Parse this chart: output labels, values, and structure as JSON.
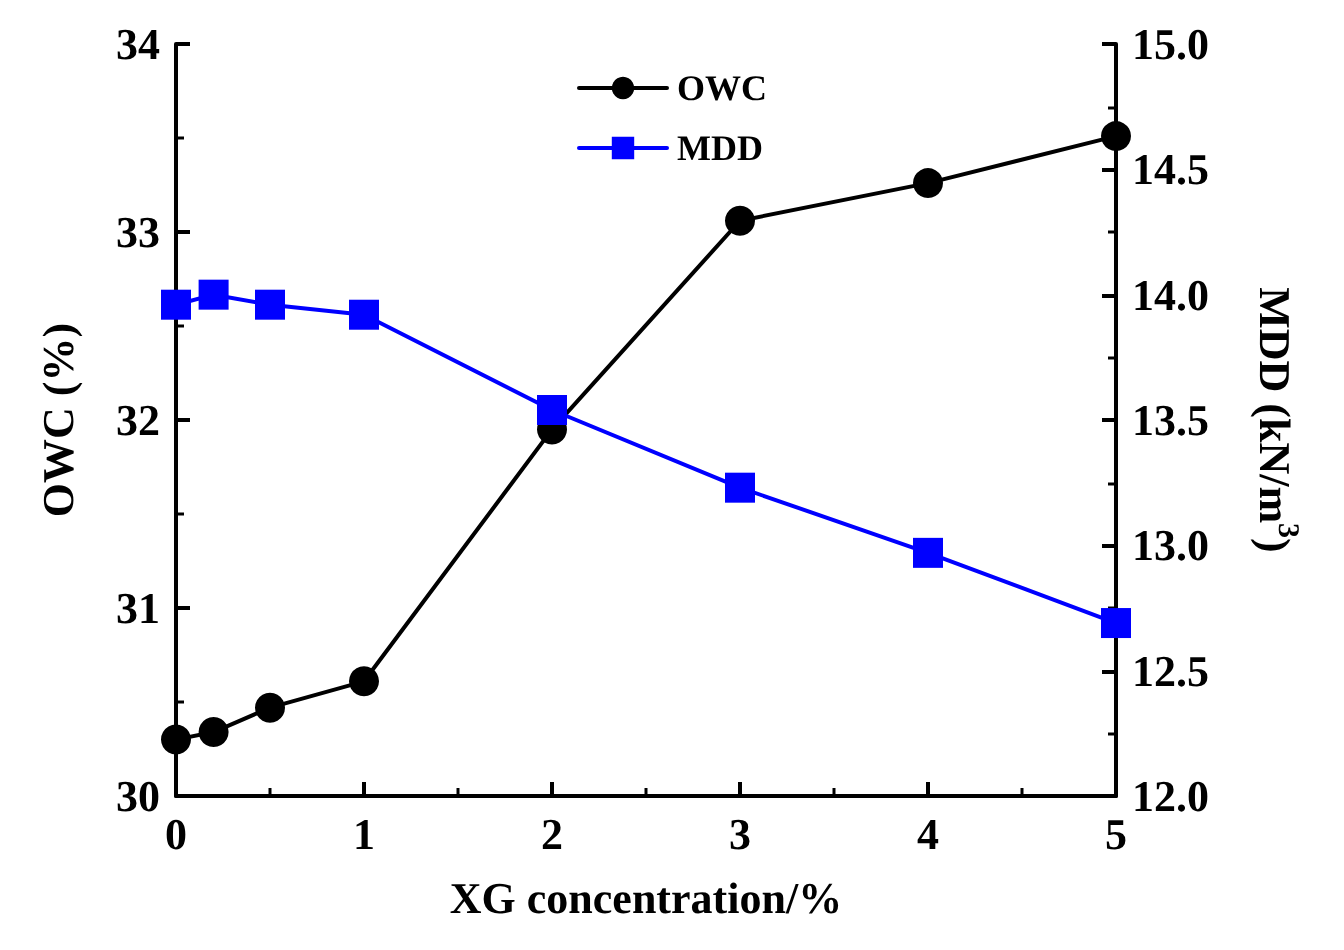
{
  "chart_data": {
    "type": "line",
    "xlabel": "XG concentration/%",
    "ylabel": "OWC (%)",
    "y2label": "MDD (kN/m$^{3}$)",
    "x": [
      0,
      0.2,
      0.5,
      1,
      2,
      3,
      4,
      5
    ],
    "series": [
      {
        "name": "OWC",
        "color": "#000000",
        "marker": "circle",
        "values": [
          30.3,
          30.34,
          30.47,
          30.61,
          31.95,
          33.06,
          33.26,
          33.51
        ]
      },
      {
        "name": "MDD",
        "color": "#0000ff",
        "marker": "square",
        "axis": "y2",
        "values": [
          13.96,
          14.0,
          13.96,
          13.92,
          13.54,
          13.23,
          12.97,
          12.69
        ]
      }
    ],
    "xlim": [
      0,
      5
    ],
    "xticks": [
      0,
      1,
      2,
      3,
      4,
      5
    ],
    "ylim": [
      30,
      34
    ],
    "yticks": [
      30,
      31,
      32,
      33,
      34
    ],
    "y2lim": [
      12,
      15
    ],
    "y2ticks": [
      {
        "value": 12,
        "label": "12.0"
      },
      {
        "value": 12.5,
        "label": "12.5"
      },
      {
        "value": 13,
        "label": "13.0"
      },
      {
        "value": 13.5,
        "label": "13.5"
      },
      {
        "value": 14,
        "label": "14.0"
      },
      {
        "value": 14.5,
        "label": "14.5"
      },
      {
        "value": 15,
        "label": "15.0"
      }
    ],
    "legend": "top",
    "grid": false,
    "line_style": "solid"
  }
}
